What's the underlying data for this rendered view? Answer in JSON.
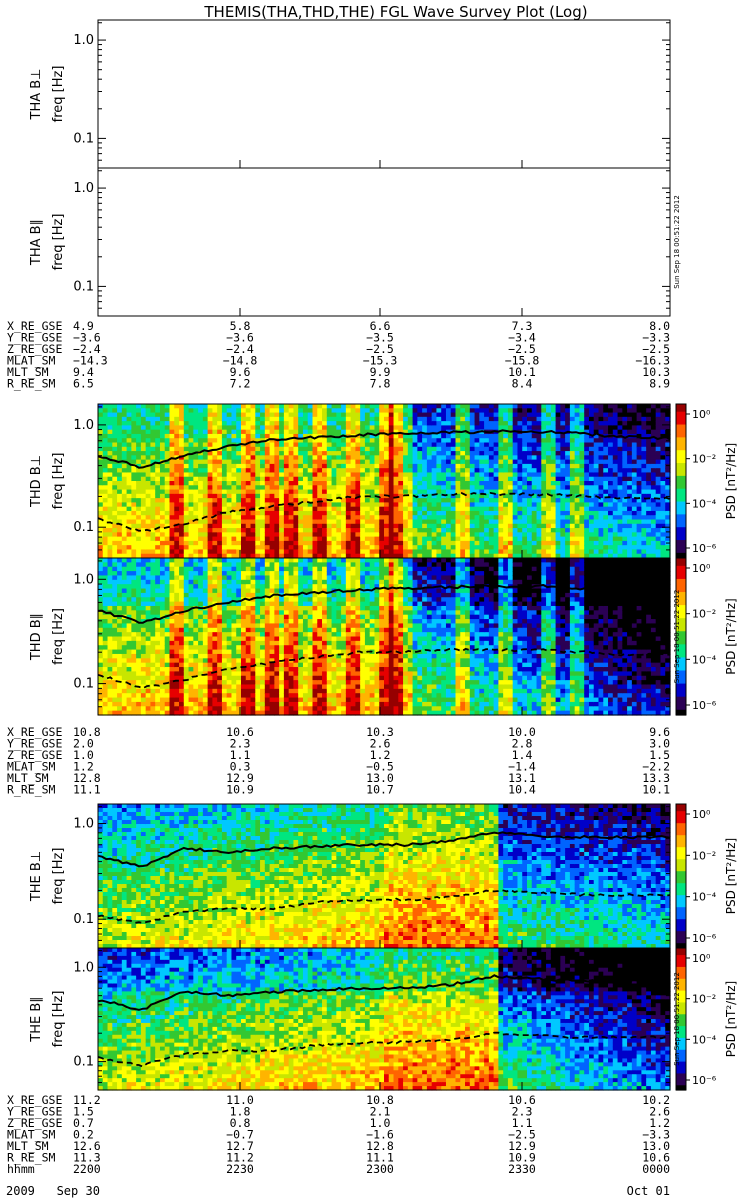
{
  "title": "THEMIS(THA,THD,THE) FGL Wave Survey Plot (Log)",
  "stamp": "Sun Sep 18 00:51:22 2012",
  "ylabel_inner": "freq [Hz]",
  "cbar_label": "PSD [nT²/Hz]",
  "cbar_ticks": [
    "10⁰",
    "10⁻²",
    "10⁻⁴",
    "10⁻⁶"
  ],
  "colors": {
    "cbar": [
      "#000000",
      "#2b0054",
      "#0000c8",
      "#0064ff",
      "#00c8ff",
      "#00e680",
      "#32c832",
      "#c8e600",
      "#ffff00",
      "#ffb400",
      "#ff6400",
      "#e60000",
      "#960000"
    ]
  },
  "chart_data": [
    {
      "type": "heatmap",
      "panel": "THA B⊥",
      "ylabel": "THA B⊥",
      "ylim": [
        0.05,
        1.6
      ],
      "yscale": "log",
      "yticks": [
        "1.0",
        "0.1"
      ],
      "empty": true
    },
    {
      "type": "heatmap",
      "panel": "THA B∥",
      "ylabel": "THA B∥",
      "ylim": [
        0.05,
        1.6
      ],
      "yscale": "log",
      "yticks": [
        "1.0",
        "0.1"
      ],
      "empty": true
    },
    {
      "type": "heatmap",
      "panel": "THD B⊥",
      "ylabel": "THD B⊥",
      "ylim": [
        0.05,
        1.6
      ],
      "yscale": "log",
      "yticks": [
        "1.0",
        "0.1"
      ],
      "series": [
        {
          "values_upper": [
            0.5,
            0.38,
            0.5,
            0.62,
            0.72,
            0.76,
            0.8,
            0.82,
            0.84,
            0.86,
            0.86,
            0.82,
            0.76,
            0.74
          ]
        },
        {
          "values_lower": [
            0.12,
            0.09,
            0.11,
            0.14,
            0.16,
            0.18,
            0.2,
            0.2,
            0.21,
            0.21,
            0.21,
            0.2,
            0.19,
            0.19
          ]
        }
      ]
    },
    {
      "type": "heatmap",
      "panel": "THD B∥",
      "ylabel": "THD B∥",
      "ylim": [
        0.05,
        1.6
      ],
      "yscale": "log",
      "yticks": [
        "1.0",
        "0.1"
      ],
      "series": [
        {
          "values_upper": [
            0.5,
            0.38,
            0.5,
            0.6,
            0.7,
            0.75,
            0.8,
            0.82,
            0.84,
            0.86,
            0.86,
            0.82,
            0.76,
            0.74
          ]
        },
        {
          "values_lower": [
            0.12,
            0.09,
            0.11,
            0.14,
            0.16,
            0.18,
            0.2,
            0.2,
            0.21,
            0.21,
            0.21,
            0.2,
            0.19,
            0.19
          ]
        }
      ]
    },
    {
      "type": "heatmap",
      "panel": "THE B⊥",
      "ylabel": "THE B⊥",
      "ylim": [
        0.05,
        1.6
      ],
      "yscale": "log",
      "yticks": [
        "1.0",
        "0.1"
      ],
      "series": [
        {
          "values_upper": [
            0.45,
            0.35,
            0.55,
            0.5,
            0.55,
            0.58,
            0.6,
            0.6,
            0.65,
            0.8,
            0.75,
            0.72,
            0.72,
            0.72
          ]
        },
        {
          "values_lower": [
            0.11,
            0.09,
            0.12,
            0.13,
            0.13,
            0.15,
            0.16,
            0.16,
            0.17,
            0.2,
            0.19,
            0.18,
            0.18,
            0.18
          ]
        }
      ]
    },
    {
      "type": "heatmap",
      "panel": "THE B∥",
      "ylabel": "THE B∥",
      "ylim": [
        0.05,
        1.6
      ],
      "yscale": "log",
      "yticks": [
        "1.0",
        "0.1"
      ],
      "series": [
        {
          "values_upper": [
            0.45,
            0.35,
            0.55,
            0.5,
            0.55,
            0.58,
            0.6,
            0.6,
            0.65,
            0.8,
            0.75,
            0.72,
            0.72,
            0.72
          ]
        },
        {
          "values_lower": [
            0.11,
            0.09,
            0.12,
            0.13,
            0.13,
            0.15,
            0.16,
            0.16,
            0.17,
            0.2,
            0.19,
            0.18,
            0.18,
            0.18
          ]
        }
      ]
    }
  ],
  "ephem": [
    {
      "rows": [
        {
          "label": "X_RE_GSE",
          "vals": [
            "4.9",
            "5.8",
            "6.6",
            "7.3",
            "8.0"
          ]
        },
        {
          "label": "Y_RE_GSE",
          "vals": [
            "−3.6",
            "−3.6",
            "−3.5",
            "−3.4",
            "−3.3"
          ]
        },
        {
          "label": "Z_RE_GSE",
          "vals": [
            "−2.4",
            "−2.4",
            "−2.5",
            "−2.5",
            "−2.5"
          ]
        },
        {
          "label": "MLAT_SM",
          "vals": [
            "−14.3",
            "−14.8",
            "−15.3",
            "−15.8",
            "−16.3"
          ]
        },
        {
          "label": "MLT_SM",
          "vals": [
            "9.4",
            "9.6",
            "9.9",
            "10.1",
            "10.3"
          ]
        },
        {
          "label": "R_RE_SM",
          "vals": [
            "6.5",
            "7.2",
            "7.8",
            "8.4",
            "8.9"
          ]
        }
      ]
    },
    {
      "rows": [
        {
          "label": "X_RE_GSE",
          "vals": [
            "10.8",
            "10.6",
            "10.3",
            "10.0",
            "9.6"
          ]
        },
        {
          "label": "Y_RE_GSE",
          "vals": [
            "2.0",
            "2.3",
            "2.6",
            "2.8",
            "3.0"
          ]
        },
        {
          "label": "Z_RE_GSE",
          "vals": [
            "1.0",
            "1.1",
            "1.2",
            "1.4",
            "1.5"
          ]
        },
        {
          "label": "MLAT_SM",
          "vals": [
            "1.2",
            "0.3",
            "−0.5",
            "−1.4",
            "−2.2"
          ]
        },
        {
          "label": "MLT_SM",
          "vals": [
            "12.8",
            "12.9",
            "13.0",
            "13.1",
            "13.3"
          ]
        },
        {
          "label": "R_RE_SM",
          "vals": [
            "11.1",
            "10.9",
            "10.7",
            "10.4",
            "10.1"
          ]
        }
      ]
    },
    {
      "rows": [
        {
          "label": "X_RE_GSE",
          "vals": [
            "11.2",
            "11.0",
            "10.8",
            "10.6",
            "10.2"
          ]
        },
        {
          "label": "Y_RE_GSE",
          "vals": [
            "1.5",
            "1.8",
            "2.1",
            "2.3",
            "2.6"
          ]
        },
        {
          "label": "Z_RE_GSE",
          "vals": [
            "0.7",
            "0.8",
            "1.0",
            "1.1",
            "1.2"
          ]
        },
        {
          "label": "MLAT_SM",
          "vals": [
            "0.2",
            "−0.7",
            "−1.6",
            "−2.5",
            "−3.3"
          ]
        },
        {
          "label": "MLT_SM",
          "vals": [
            "12.6",
            "12.7",
            "12.8",
            "12.9",
            "13.0"
          ]
        },
        {
          "label": "R_RE_SM",
          "vals": [
            "11.3",
            "11.2",
            "11.1",
            "10.9",
            "10.6"
          ]
        },
        {
          "label": "hhmm",
          "vals": [
            "2200",
            "2230",
            "2300",
            "2330",
            "0000"
          ]
        }
      ]
    }
  ],
  "date_left": "2009   Sep 30",
  "date_right": "Oct 01"
}
